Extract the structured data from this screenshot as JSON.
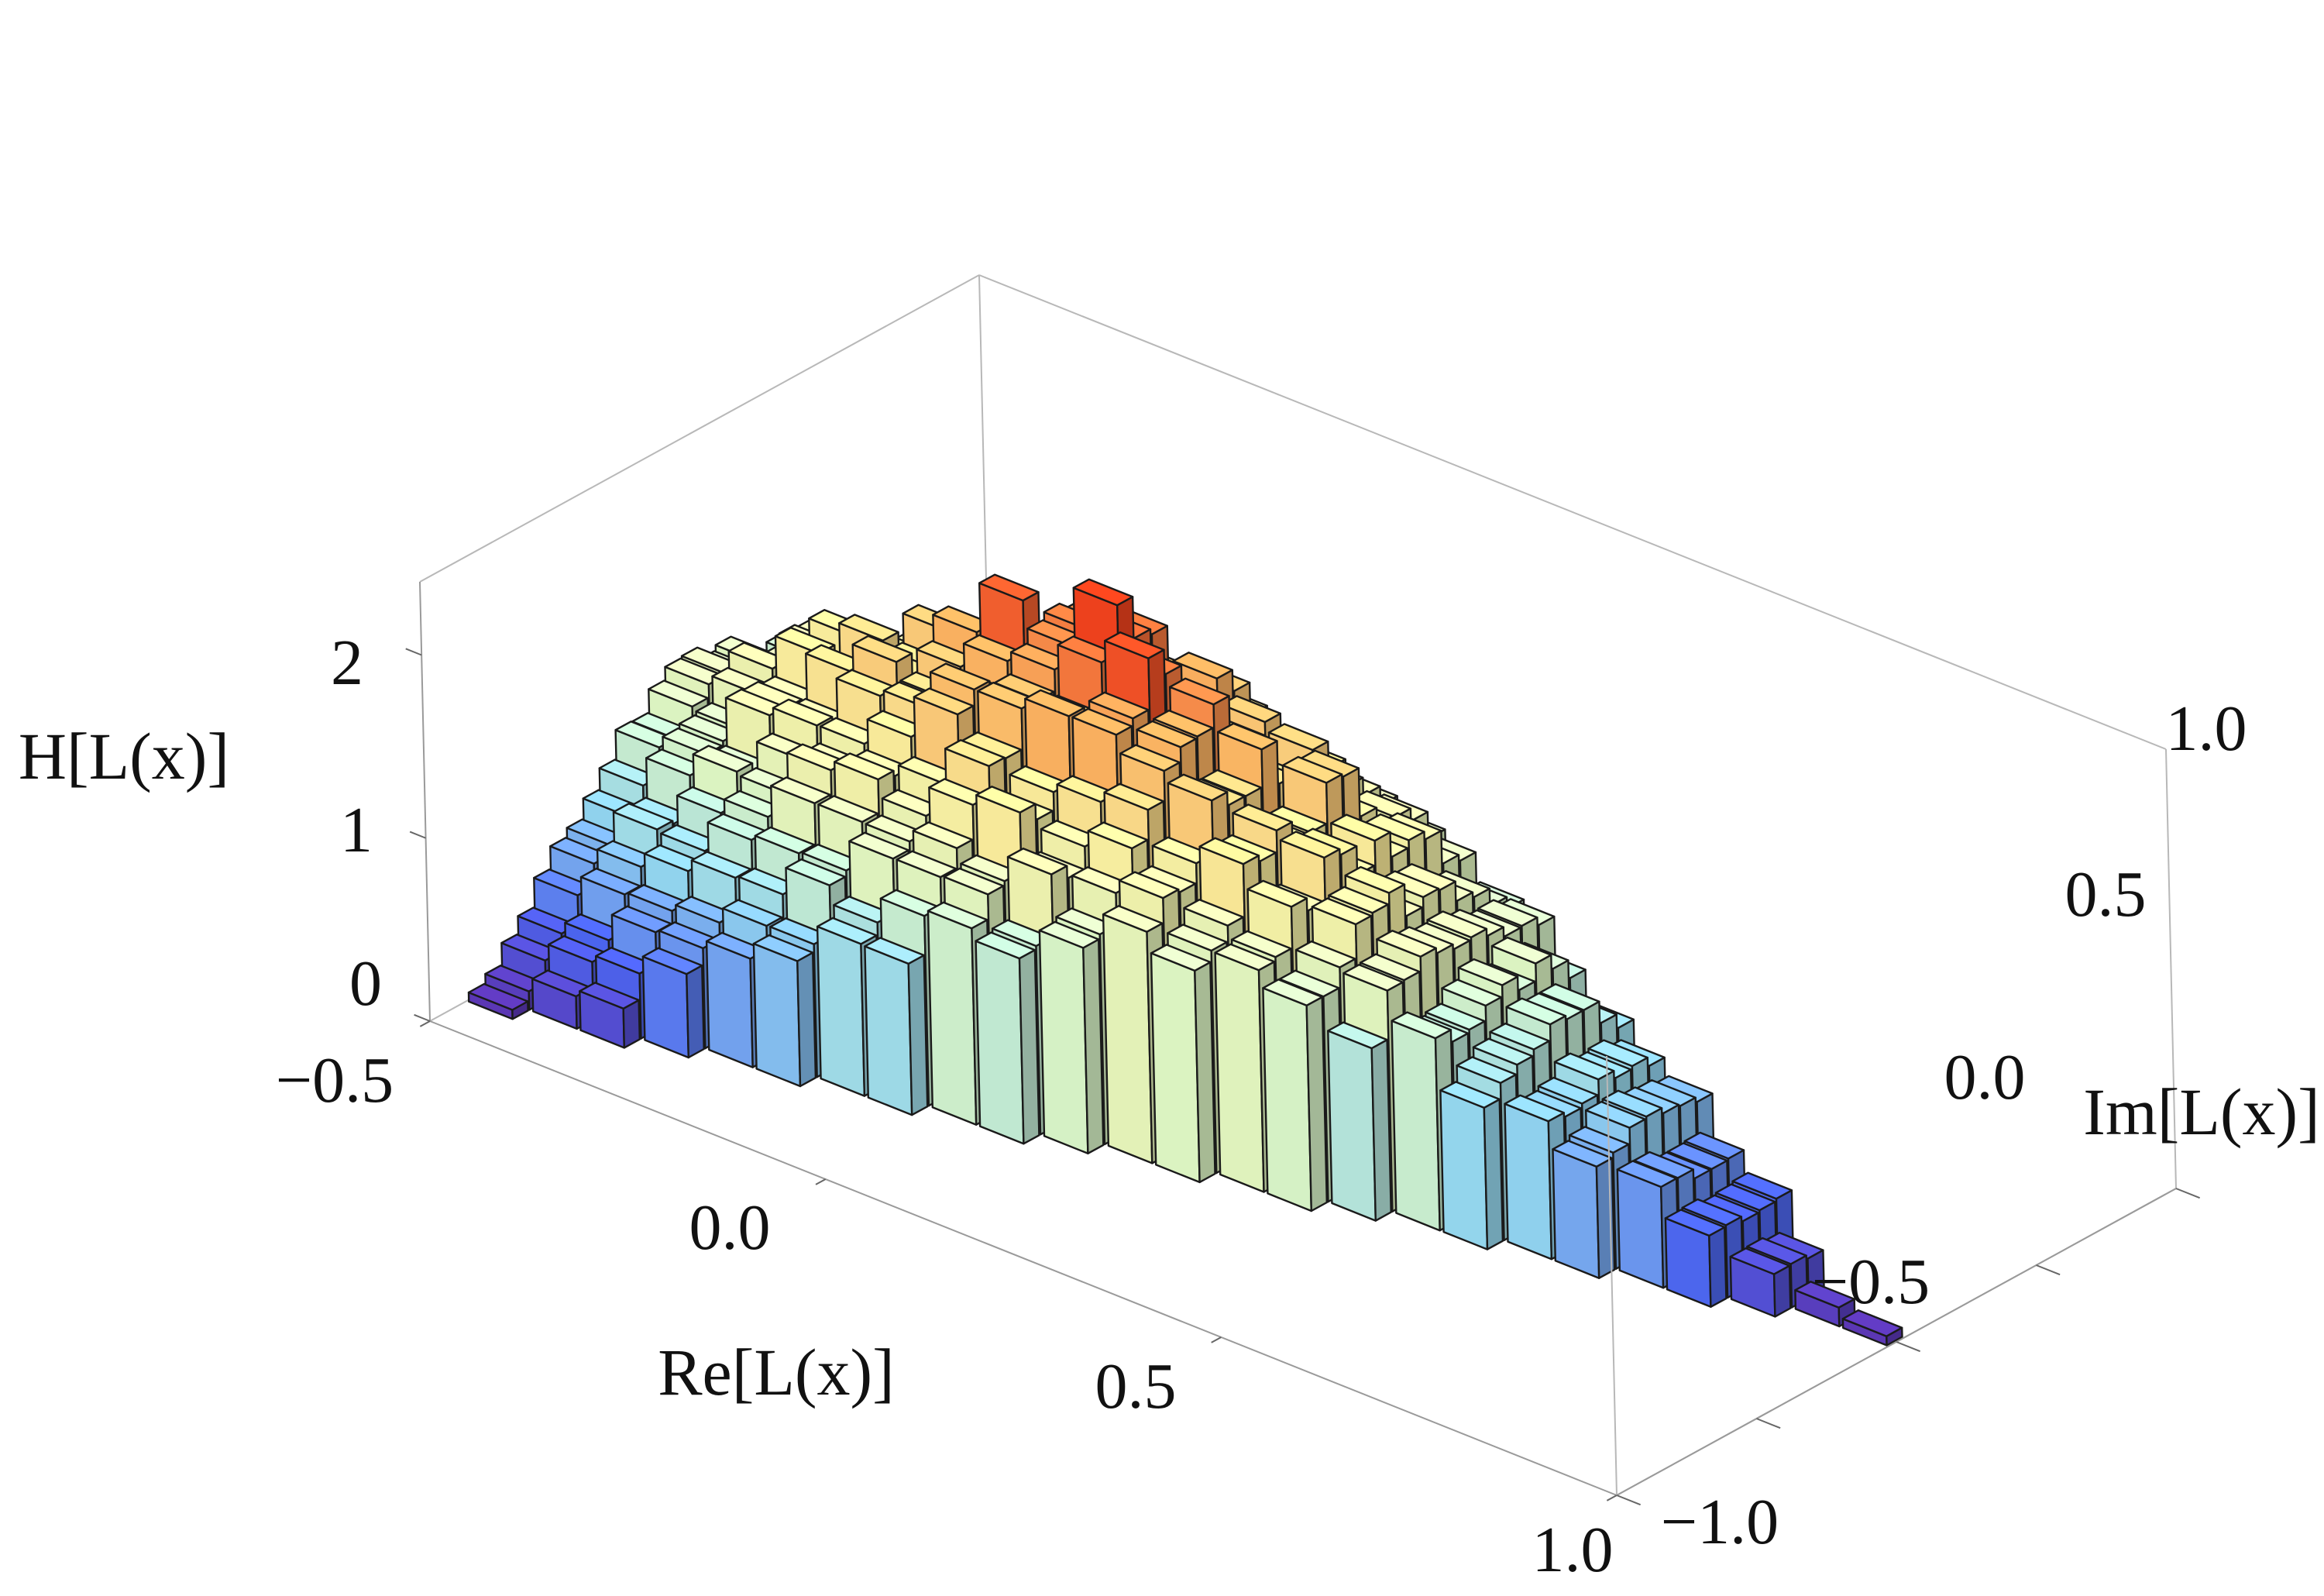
{
  "chart_data": {
    "type": "bar3d",
    "xlabel": "Re[L(x)]",
    "ylabel": "Im[L(x)]",
    "zlabel": "H[L(x)]",
    "xlim": [
      -0.5,
      1.0
    ],
    "ylim": [
      -1.0,
      1.0
    ],
    "zlim": [
      0,
      2.4
    ],
    "x_ticks": [
      "−0.5",
      "0.0",
      "0.5",
      "1.0"
    ],
    "y_ticks": [
      "−1.0",
      "−0.5",
      "0.0",
      "0.5",
      "1.0"
    ],
    "z_ticks": [
      "0",
      "1",
      "2"
    ],
    "grid": false,
    "legend": "none",
    "colormap": [
      "#5b2fa8",
      "#4a62e8",
      "#8fd0e8",
      "#d6eebe",
      "#f2e89a",
      "#f4b060",
      "#e8401c"
    ],
    "support": "triangle with vertices (-0.5, 0.87), (-0.5, -0.87), (1.0, 0.0)",
    "bin_width": 0.06,
    "peak_height": 2.3,
    "peak_location": [
      0.0,
      0.0
    ]
  }
}
